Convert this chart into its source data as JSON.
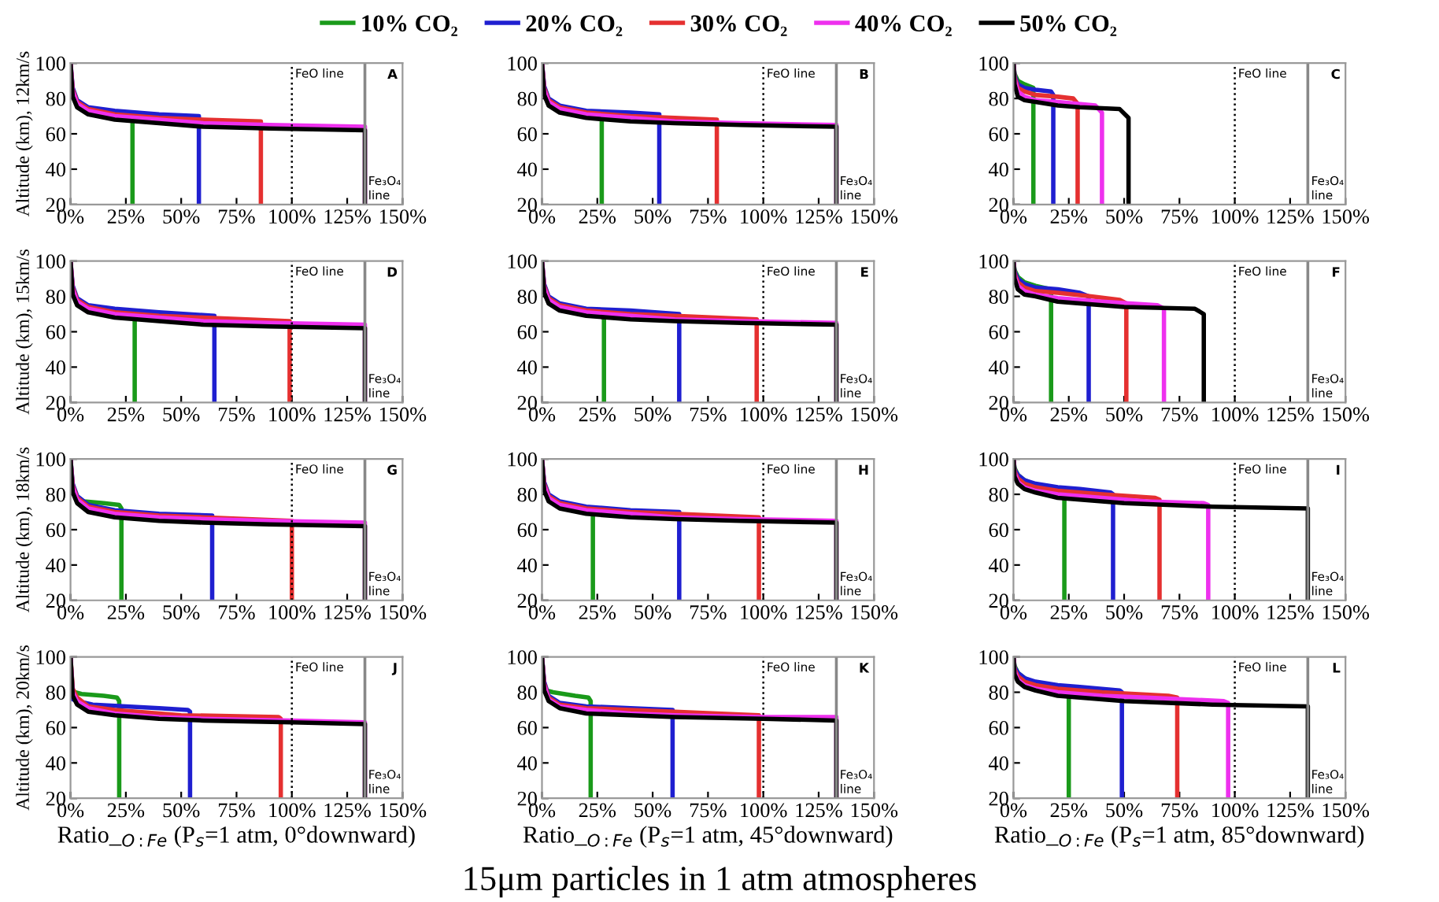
{
  "chart_data": [
    {
      "type": "line",
      "legend": "top",
      "ylabel": "Altitude (km), 12km/s",
      "xlim": [
        0,
        150
      ],
      "ylim": [
        20,
        100
      ],
      "xticks": [
        {
          "value": 0,
          "label": "0%"
        },
        {
          "value": 25,
          "label": "25%"
        },
        {
          "value": 50,
          "label": "50%"
        },
        {
          "value": 75,
          "label": "75%"
        },
        {
          "value": 100,
          "label": "100%"
        },
        {
          "value": 125,
          "label": "125%"
        },
        {
          "value": 150,
          "label": "150%"
        }
      ],
      "yticks": [
        20,
        40,
        60,
        80,
        100
      ],
      "ref_lines": [
        {
          "axis": "x",
          "value": 100,
          "label": "FeO line",
          "color": "#000000",
          "line_style": "dotted"
        },
        {
          "axis": "x",
          "value": 133,
          "label": "Fe₃O₄\nline",
          "color": "#888888",
          "line_style": "solid"
        }
      ],
      "annotations": [
        "A"
      ],
      "series": [
        {
          "name": "10% CO₂",
          "color": "#1a9a1a",
          "x": [
            28,
            28
          ],
          "values": [
            69,
            20
          ]
        },
        {
          "name": "20% CO₂",
          "color": "#1f1fd0",
          "x": [
            0,
            1,
            3,
            8,
            20,
            40,
            58,
            58
          ],
          "values": [
            100,
            86,
            79,
            75,
            73,
            71,
            70,
            20
          ]
        },
        {
          "name": "30% CO₂",
          "color": "#e53030",
          "x": [
            0,
            1,
            3,
            8,
            20,
            40,
            60,
            86,
            86
          ],
          "values": [
            100,
            85,
            78,
            74,
            71,
            69,
            68,
            67,
            20
          ]
        },
        {
          "name": "40% CO₂",
          "color": "#ee30ee",
          "x": [
            0,
            1,
            3,
            8,
            20,
            40,
            60,
            90,
            133,
            133
          ],
          "values": [
            100,
            84,
            77,
            73,
            70,
            68,
            66,
            65,
            64,
            20
          ]
        },
        {
          "name": "50% CO₂",
          "color": "#000000",
          "x": [
            0,
            1,
            3,
            8,
            20,
            40,
            60,
            90,
            133,
            133
          ],
          "values": [
            100,
            81,
            75,
            71,
            68,
            66,
            64,
            63,
            62,
            20
          ]
        }
      ]
    },
    {
      "type": "line",
      "xlim": [
        0,
        150
      ],
      "ylim": [
        20,
        100
      ],
      "xticks": [
        {
          "value": 0,
          "label": "0%"
        },
        {
          "value": 25,
          "label": "25%"
        },
        {
          "value": 50,
          "label": "50%"
        },
        {
          "value": 75,
          "label": "75%"
        },
        {
          "value": 100,
          "label": "100%"
        },
        {
          "value": 125,
          "label": "125%"
        },
        {
          "value": 150,
          "label": "150%"
        }
      ],
      "yticks": [
        20,
        40,
        60,
        80,
        100
      ],
      "ref_lines": [
        {
          "axis": "x",
          "value": 100,
          "label": "FeO line",
          "color": "#000000",
          "line_style": "dotted"
        },
        {
          "axis": "x",
          "value": 133,
          "label": "Fe₃O₄\nline",
          "color": "#888888",
          "line_style": "solid"
        }
      ],
      "annotations": [
        "B"
      ],
      "series": [
        {
          "name": "10% CO₂",
          "color": "#1a9a1a",
          "x": [
            27,
            27
          ],
          "values": [
            70,
            20
          ]
        },
        {
          "name": "20% CO₂",
          "color": "#1f1fd0",
          "x": [
            0,
            1,
            3,
            8,
            20,
            40,
            53,
            53
          ],
          "values": [
            100,
            87,
            80,
            76,
            73,
            72,
            71,
            20
          ]
        },
        {
          "name": "30% CO₂",
          "color": "#e53030",
          "x": [
            0,
            1,
            3,
            8,
            20,
            40,
            60,
            79,
            79
          ],
          "values": [
            100,
            86,
            79,
            75,
            72,
            70,
            69,
            68,
            20
          ]
        },
        {
          "name": "40% CO₂",
          "color": "#ee30ee",
          "x": [
            0,
            1,
            3,
            8,
            20,
            40,
            60,
            90,
            133,
            133
          ],
          "values": [
            100,
            85,
            78,
            74,
            71,
            69,
            67,
            66,
            65,
            20
          ]
        },
        {
          "name": "50% CO₂",
          "color": "#000000",
          "x": [
            0,
            1,
            3,
            8,
            20,
            40,
            60,
            90,
            133,
            133
          ],
          "values": [
            100,
            82,
            76,
            72,
            69,
            67,
            66,
            65,
            64,
            20
          ]
        }
      ]
    },
    {
      "type": "line",
      "xlim": [
        0,
        150
      ],
      "ylim": [
        20,
        100
      ],
      "xticks": [
        {
          "value": 0,
          "label": "0%"
        },
        {
          "value": 25,
          "label": "25%"
        },
        {
          "value": 50,
          "label": "50%"
        },
        {
          "value": 75,
          "label": "75%"
        },
        {
          "value": 100,
          "label": "100%"
        },
        {
          "value": 125,
          "label": "125%"
        },
        {
          "value": 150,
          "label": "150%"
        }
      ],
      "yticks": [
        20,
        40,
        60,
        80,
        100
      ],
      "ref_lines": [
        {
          "axis": "x",
          "value": 100,
          "label": "FeO line",
          "color": "#000000",
          "line_style": "dotted"
        },
        {
          "axis": "x",
          "value": 133,
          "label": "Fe₃O₄\nline",
          "color": "#888888",
          "line_style": "solid"
        }
      ],
      "annotations": [
        "C"
      ],
      "series": [
        {
          "name": "10% CO₂",
          "color": "#1a9a1a",
          "x": [
            0,
            0.5,
            2,
            5,
            9,
            9
          ],
          "values": [
            100,
            94,
            90,
            88,
            86,
            20
          ]
        },
        {
          "name": "20% CO₂",
          "color": "#1f1fd0",
          "x": [
            0,
            0.5,
            2,
            5,
            10,
            17,
            18,
            18
          ],
          "values": [
            100,
            93,
            88,
            86,
            85,
            84,
            82,
            20
          ]
        },
        {
          "name": "30% CO₂",
          "color": "#e53030",
          "x": [
            0,
            0.5,
            2,
            5,
            10,
            20,
            27,
            29,
            29
          ],
          "values": [
            100,
            92,
            86,
            84,
            82,
            81,
            80,
            77,
            20
          ]
        },
        {
          "name": "40% CO₂",
          "color": "#ee30ee",
          "x": [
            0,
            0.5,
            2,
            5,
            10,
            20,
            37,
            40,
            40
          ],
          "values": [
            100,
            91,
            84,
            81,
            79,
            78,
            76,
            72,
            20
          ]
        },
        {
          "name": "50% CO₂",
          "color": "#000000",
          "x": [
            0,
            0.5,
            2,
            5,
            10,
            20,
            30,
            48,
            52,
            52
          ],
          "values": [
            100,
            88,
            81,
            79,
            78,
            76,
            75,
            74,
            69,
            20
          ]
        }
      ]
    },
    {
      "type": "line",
      "ylabel": "Altitude (km), 15km/s",
      "xlim": [
        0,
        150
      ],
      "ylim": [
        20,
        100
      ],
      "xticks": [
        {
          "value": 0,
          "label": "0%"
        },
        {
          "value": 25,
          "label": "25%"
        },
        {
          "value": 50,
          "label": "50%"
        },
        {
          "value": 75,
          "label": "75%"
        },
        {
          "value": 100,
          "label": "100%"
        },
        {
          "value": 125,
          "label": "125%"
        },
        {
          "value": 150,
          "label": "150%"
        }
      ],
      "yticks": [
        20,
        40,
        60,
        80,
        100
      ],
      "ref_lines": [
        {
          "axis": "x",
          "value": 100,
          "label": "FeO line",
          "color": "#000000",
          "line_style": "dotted"
        },
        {
          "axis": "x",
          "value": 133,
          "label": "Fe₃O₄\nline",
          "color": "#888888",
          "line_style": "solid"
        }
      ],
      "annotations": [
        "D"
      ],
      "series": [
        {
          "name": "10% CO₂",
          "color": "#1a9a1a",
          "x": [
            29,
            29
          ],
          "values": [
            69,
            20
          ]
        },
        {
          "name": "20% CO₂",
          "color": "#1f1fd0",
          "x": [
            0,
            1,
            3,
            8,
            20,
            40,
            65,
            65
          ],
          "values": [
            100,
            86,
            79,
            75,
            73,
            71,
            69,
            20
          ]
        },
        {
          "name": "30% CO₂",
          "color": "#e53030",
          "x": [
            0,
            1,
            3,
            8,
            20,
            40,
            60,
            99,
            99
          ],
          "values": [
            100,
            85,
            78,
            74,
            71,
            69,
            68,
            66,
            20
          ]
        },
        {
          "name": "40% CO₂",
          "color": "#ee30ee",
          "x": [
            0,
            1,
            3,
            8,
            20,
            40,
            60,
            90,
            133,
            133
          ],
          "values": [
            100,
            84,
            77,
            73,
            70,
            68,
            66,
            65,
            64,
            20
          ]
        },
        {
          "name": "50% CO₂",
          "color": "#000000",
          "x": [
            0,
            1,
            3,
            8,
            20,
            40,
            60,
            90,
            133,
            133
          ],
          "values": [
            100,
            81,
            75,
            71,
            68,
            66,
            64,
            63,
            62,
            20
          ]
        }
      ]
    },
    {
      "type": "line",
      "xlim": [
        0,
        150
      ],
      "ylim": [
        20,
        100
      ],
      "xticks": [
        {
          "value": 0,
          "label": "0%"
        },
        {
          "value": 25,
          "label": "25%"
        },
        {
          "value": 50,
          "label": "50%"
        },
        {
          "value": 75,
          "label": "75%"
        },
        {
          "value": 100,
          "label": "100%"
        },
        {
          "value": 125,
          "label": "125%"
        },
        {
          "value": 150,
          "label": "150%"
        }
      ],
      "yticks": [
        20,
        40,
        60,
        80,
        100
      ],
      "ref_lines": [
        {
          "axis": "x",
          "value": 100,
          "label": "FeO line",
          "color": "#000000",
          "line_style": "dotted"
        },
        {
          "axis": "x",
          "value": 133,
          "label": "Fe₃O₄\nline",
          "color": "#888888",
          "line_style": "solid"
        }
      ],
      "annotations": [
        "E"
      ],
      "series": [
        {
          "name": "10% CO₂",
          "color": "#1a9a1a",
          "x": [
            28,
            28
          ],
          "values": [
            70,
            20
          ]
        },
        {
          "name": "20% CO₂",
          "color": "#1f1fd0",
          "x": [
            0,
            1,
            3,
            8,
            20,
            40,
            62,
            62
          ],
          "values": [
            100,
            87,
            80,
            76,
            73,
            72,
            70,
            20
          ]
        },
        {
          "name": "30% CO₂",
          "color": "#e53030",
          "x": [
            0,
            1,
            3,
            8,
            20,
            40,
            60,
            97,
            97
          ],
          "values": [
            100,
            86,
            79,
            75,
            72,
            70,
            69,
            67,
            20
          ]
        },
        {
          "name": "40% CO₂",
          "color": "#ee30ee",
          "x": [
            0,
            1,
            3,
            8,
            20,
            40,
            60,
            90,
            133,
            133
          ],
          "values": [
            100,
            85,
            78,
            74,
            71,
            69,
            67,
            66,
            65,
            20
          ]
        },
        {
          "name": "50% CO₂",
          "color": "#000000",
          "x": [
            0,
            1,
            3,
            8,
            20,
            40,
            60,
            90,
            133,
            133
          ],
          "values": [
            100,
            82,
            76,
            72,
            69,
            67,
            66,
            65,
            64,
            20
          ]
        }
      ]
    },
    {
      "type": "line",
      "xlim": [
        0,
        150
      ],
      "ylim": [
        20,
        100
      ],
      "xticks": [
        {
          "value": 0,
          "label": "0%"
        },
        {
          "value": 25,
          "label": "25%"
        },
        {
          "value": 50,
          "label": "50%"
        },
        {
          "value": 75,
          "label": "75%"
        },
        {
          "value": 100,
          "label": "100%"
        },
        {
          "value": 125,
          "label": "125%"
        },
        {
          "value": 150,
          "label": "150%"
        }
      ],
      "yticks": [
        20,
        40,
        60,
        80,
        100
      ],
      "ref_lines": [
        {
          "axis": "x",
          "value": 100,
          "label": "FeO line",
          "color": "#000000",
          "line_style": "dotted"
        },
        {
          "axis": "x",
          "value": 133,
          "label": "Fe₃O₄\nline",
          "color": "#888888",
          "line_style": "solid"
        }
      ],
      "annotations": [
        "F"
      ],
      "series": [
        {
          "name": "10% CO₂",
          "color": "#1a9a1a",
          "x": [
            0,
            0.5,
            2,
            5,
            10,
            17,
            17
          ],
          "values": [
            100,
            95,
            91,
            88,
            86,
            84,
            20
          ]
        },
        {
          "name": "20% CO₂",
          "color": "#1f1fd0",
          "x": [
            0,
            0.5,
            2,
            5,
            10,
            20,
            30,
            34,
            34
          ],
          "values": [
            100,
            94,
            90,
            87,
            85,
            84,
            82,
            80,
            20
          ]
        },
        {
          "name": "30% CO₂",
          "color": "#e53030",
          "x": [
            0,
            0.5,
            2,
            5,
            10,
            20,
            35,
            48,
            51,
            51
          ],
          "values": [
            100,
            93,
            88,
            85,
            83,
            82,
            80,
            78,
            76,
            20
          ]
        },
        {
          "name": "40% CO₂",
          "color": "#ee30ee",
          "x": [
            0,
            0.5,
            2,
            5,
            10,
            20,
            40,
            65,
            68,
            68
          ],
          "values": [
            100,
            92,
            86,
            83,
            81,
            79,
            77,
            75,
            73,
            20
          ]
        },
        {
          "name": "50% CO₂",
          "color": "#000000",
          "x": [
            0,
            0.5,
            2,
            5,
            10,
            20,
            30,
            50,
            82,
            86,
            86
          ],
          "values": [
            100,
            90,
            84,
            81,
            80,
            77,
            76,
            74,
            73,
            70,
            20
          ]
        }
      ]
    },
    {
      "type": "line",
      "ylabel": "Altitude (km), 18km/s",
      "xlim": [
        0,
        150
      ],
      "ylim": [
        20,
        100
      ],
      "xticks": [
        {
          "value": 0,
          "label": "0%"
        },
        {
          "value": 25,
          "label": "25%"
        },
        {
          "value": 50,
          "label": "50%"
        },
        {
          "value": 75,
          "label": "75%"
        },
        {
          "value": 100,
          "label": "100%"
        },
        {
          "value": 125,
          "label": "125%"
        },
        {
          "value": 150,
          "label": "150%"
        }
      ],
      "yticks": [
        20,
        40,
        60,
        80,
        100
      ],
      "ref_lines": [
        {
          "axis": "x",
          "value": 100,
          "label": "FeO line",
          "color": "#000000",
          "line_style": "dotted"
        },
        {
          "axis": "x",
          "value": 133,
          "label": "Fe₃O₄\nline",
          "color": "#888888",
          "line_style": "solid"
        }
      ],
      "annotations": [
        "G"
      ],
      "series": [
        {
          "name": "10% CO₂",
          "color": "#1a9a1a",
          "x": [
            0,
            1,
            3,
            6,
            15,
            22,
            23,
            23
          ],
          "values": [
            100,
            83,
            78,
            76,
            75,
            74,
            72,
            20
          ]
        },
        {
          "name": "20% CO₂",
          "color": "#1f1fd0",
          "x": [
            0,
            1,
            3,
            8,
            20,
            40,
            64,
            64
          ],
          "values": [
            100,
            86,
            79,
            74,
            71,
            69,
            68,
            20
          ]
        },
        {
          "name": "30% CO₂",
          "color": "#e53030",
          "x": [
            0,
            1,
            3,
            8,
            20,
            40,
            60,
            100,
            100
          ],
          "values": [
            100,
            85,
            78,
            73,
            70,
            68,
            67,
            65,
            20
          ]
        },
        {
          "name": "40% CO₂",
          "color": "#ee30ee",
          "x": [
            0,
            1,
            3,
            8,
            20,
            40,
            60,
            90,
            133,
            133
          ],
          "values": [
            100,
            84,
            77,
            72,
            69,
            67,
            66,
            65,
            64,
            20
          ]
        },
        {
          "name": "50% CO₂",
          "color": "#000000",
          "x": [
            0,
            1,
            3,
            8,
            20,
            40,
            60,
            90,
            133,
            133
          ],
          "values": [
            100,
            81,
            75,
            70,
            67,
            65,
            64,
            63,
            62,
            20
          ]
        }
      ]
    },
    {
      "type": "line",
      "xlim": [
        0,
        150
      ],
      "ylim": [
        20,
        100
      ],
      "xticks": [
        {
          "value": 0,
          "label": "0%"
        },
        {
          "value": 25,
          "label": "25%"
        },
        {
          "value": 50,
          "label": "50%"
        },
        {
          "value": 75,
          "label": "75%"
        },
        {
          "value": 100,
          "label": "100%"
        },
        {
          "value": 125,
          "label": "125%"
        },
        {
          "value": 150,
          "label": "150%"
        }
      ],
      "yticks": [
        20,
        40,
        60,
        80,
        100
      ],
      "ref_lines": [
        {
          "axis": "x",
          "value": 100,
          "label": "FeO line",
          "color": "#000000",
          "line_style": "dotted"
        },
        {
          "axis": "x",
          "value": 133,
          "label": "Fe₃O₄\nline",
          "color": "#888888",
          "line_style": "solid"
        }
      ],
      "annotations": [
        "H"
      ],
      "series": [
        {
          "name": "10% CO₂",
          "color": "#1a9a1a",
          "x": [
            23,
            23
          ],
          "values": [
            71,
            20
          ]
        },
        {
          "name": "20% CO₂",
          "color": "#1f1fd0",
          "x": [
            0,
            1,
            3,
            8,
            20,
            40,
            62,
            62
          ],
          "values": [
            100,
            87,
            80,
            76,
            73,
            71,
            70,
            20
          ]
        },
        {
          "name": "30% CO₂",
          "color": "#e53030",
          "x": [
            0,
            1,
            3,
            8,
            20,
            40,
            60,
            98,
            98
          ],
          "values": [
            100,
            86,
            79,
            75,
            72,
            70,
            69,
            67,
            20
          ]
        },
        {
          "name": "40% CO₂",
          "color": "#ee30ee",
          "x": [
            0,
            1,
            3,
            8,
            20,
            40,
            60,
            90,
            133,
            133
          ],
          "values": [
            100,
            85,
            78,
            74,
            71,
            69,
            67,
            66,
            65,
            20
          ]
        },
        {
          "name": "50% CO₂",
          "color": "#000000",
          "x": [
            0,
            1,
            3,
            8,
            20,
            40,
            60,
            90,
            133,
            133
          ],
          "values": [
            100,
            82,
            76,
            72,
            69,
            67,
            66,
            65,
            64,
            20
          ]
        }
      ]
    },
    {
      "type": "line",
      "xlim": [
        0,
        150
      ],
      "ylim": [
        20,
        100
      ],
      "xticks": [
        {
          "value": 0,
          "label": "0%"
        },
        {
          "value": 25,
          "label": "25%"
        },
        {
          "value": 50,
          "label": "50%"
        },
        {
          "value": 75,
          "label": "75%"
        },
        {
          "value": 100,
          "label": "100%"
        },
        {
          "value": 125,
          "label": "125%"
        },
        {
          "value": 150,
          "label": "150%"
        }
      ],
      "yticks": [
        20,
        40,
        60,
        80,
        100
      ],
      "ref_lines": [
        {
          "axis": "x",
          "value": 100,
          "label": "FeO line",
          "color": "#000000",
          "line_style": "dotted"
        },
        {
          "axis": "x",
          "value": 133,
          "label": "Fe₃O₄\nline",
          "color": "#888888",
          "line_style": "solid"
        }
      ],
      "annotations": [
        "I"
      ],
      "series": [
        {
          "name": "10% CO₂",
          "color": "#1a9a1a",
          "x": [
            0,
            0.5,
            2,
            5,
            10,
            23,
            23
          ],
          "values": [
            100,
            95,
            91,
            88,
            85,
            79,
            20
          ]
        },
        {
          "name": "20% CO₂",
          "color": "#1f1fd0",
          "x": [
            0,
            0.5,
            2,
            5,
            10,
            20,
            30,
            44,
            45,
            45
          ],
          "values": [
            100,
            94,
            91,
            88,
            86,
            84,
            83,
            81,
            80,
            20
          ]
        },
        {
          "name": "30% CO₂",
          "color": "#e53030",
          "x": [
            0,
            0.5,
            2,
            5,
            10,
            20,
            40,
            64,
            66,
            66
          ],
          "values": [
            100,
            93,
            89,
            86,
            84,
            82,
            80,
            78,
            77,
            20
          ]
        },
        {
          "name": "40% CO₂",
          "color": "#ee30ee",
          "x": [
            0,
            0.5,
            2,
            5,
            10,
            20,
            40,
            60,
            86,
            88,
            88
          ],
          "values": [
            100,
            92,
            87,
            84,
            82,
            80,
            78,
            76,
            75,
            74,
            20
          ]
        },
        {
          "name": "50% CO₂",
          "color": "#000000",
          "x": [
            0,
            0.5,
            2,
            5,
            10,
            20,
            30,
            50,
            90,
            133,
            133
          ],
          "values": [
            100,
            90,
            86,
            83,
            81,
            78,
            77,
            75,
            73,
            72,
            20
          ]
        }
      ]
    },
    {
      "type": "line",
      "ylabel": "Altitude (km), 20km/s",
      "xlabel": "Ratio_$_{O:Fe}$ (P$_{s}$=1 atm, 0°downward)",
      "xlim": [
        0,
        150
      ],
      "ylim": [
        20,
        100
      ],
      "xticks": [
        {
          "value": 0,
          "label": "0%"
        },
        {
          "value": 25,
          "label": "25%"
        },
        {
          "value": 50,
          "label": "50%"
        },
        {
          "value": 75,
          "label": "75%"
        },
        {
          "value": 100,
          "label": "100%"
        },
        {
          "value": 125,
          "label": "125%"
        },
        {
          "value": 150,
          "label": "150%"
        }
      ],
      "yticks": [
        20,
        40,
        60,
        80,
        100
      ],
      "ref_lines": [
        {
          "axis": "x",
          "value": 100,
          "label": "FeO line",
          "color": "#000000",
          "line_style": "dotted"
        },
        {
          "axis": "x",
          "value": 133,
          "label": "Fe₃O₄\nline",
          "color": "#888888",
          "line_style": "solid"
        }
      ],
      "annotations": [
        "J"
      ],
      "series": [
        {
          "name": "10% CO₂",
          "color": "#1a9a1a",
          "x": [
            0,
            1,
            2,
            5,
            15,
            21,
            22,
            22
          ],
          "values": [
            100,
            81,
            80,
            79,
            78,
            77,
            75,
            20
          ]
        },
        {
          "name": "20% CO₂",
          "color": "#1f1fd0",
          "x": [
            0,
            0.5,
            1,
            3,
            10,
            40,
            53,
            54,
            54
          ],
          "values": [
            100,
            77,
            76,
            75,
            73,
            71,
            70,
            69,
            20
          ]
        },
        {
          "name": "30% CO₂",
          "color": "#e53030",
          "x": [
            0,
            1,
            3,
            8,
            20,
            50,
            94,
            95,
            95
          ],
          "values": [
            100,
            82,
            77,
            72,
            70,
            67,
            66,
            65,
            20
          ]
        },
        {
          "name": "40% CO₂",
          "color": "#ee30ee",
          "x": [
            0,
            1,
            3,
            8,
            20,
            40,
            60,
            100,
            133,
            133
          ],
          "values": [
            100,
            80,
            75,
            71,
            68,
            66,
            65,
            64,
            63,
            20
          ]
        },
        {
          "name": "50% CO₂",
          "color": "#000000",
          "x": [
            0,
            1,
            3,
            8,
            20,
            40,
            60,
            100,
            133,
            133
          ],
          "values": [
            100,
            78,
            73,
            69,
            67,
            65,
            64,
            63,
            62,
            20
          ]
        }
      ]
    },
    {
      "type": "line",
      "xlabel": "Ratio_$_{O:Fe}$ (P$_{s}$=1 atm, 45°downward)",
      "xlim": [
        0,
        150
      ],
      "ylim": [
        20,
        100
      ],
      "xticks": [
        {
          "value": 0,
          "label": "0%"
        },
        {
          "value": 25,
          "label": "25%"
        },
        {
          "value": 50,
          "label": "50%"
        },
        {
          "value": 75,
          "label": "75%"
        },
        {
          "value": 100,
          "label": "100%"
        },
        {
          "value": 125,
          "label": "125%"
        },
        {
          "value": 150,
          "label": "150%"
        }
      ],
      "yticks": [
        20,
        40,
        60,
        80,
        100
      ],
      "ref_lines": [
        {
          "axis": "x",
          "value": 100,
          "label": "FeO line",
          "color": "#000000",
          "line_style": "dotted"
        },
        {
          "axis": "x",
          "value": 133,
          "label": "Fe₃O₄\nline",
          "color": "#888888",
          "line_style": "solid"
        }
      ],
      "annotations": [
        "K",
        "15μm particles in 1 atm atmospheres"
      ],
      "series": [
        {
          "name": "10% CO₂",
          "color": "#1a9a1a",
          "x": [
            0,
            1,
            2,
            5,
            15,
            21,
            22,
            22
          ],
          "values": [
            100,
            83,
            81,
            80,
            78,
            77,
            75,
            20
          ]
        },
        {
          "name": "20% CO₂",
          "color": "#1f1fd0",
          "x": [
            0,
            1,
            3,
            8,
            20,
            40,
            59,
            59
          ],
          "values": [
            100,
            86,
            78,
            74,
            72,
            71,
            70,
            20
          ]
        },
        {
          "name": "30% CO₂",
          "color": "#e53030",
          "x": [
            0,
            1,
            3,
            8,
            20,
            40,
            60,
            98,
            98
          ],
          "values": [
            100,
            85,
            77,
            73,
            71,
            70,
            69,
            67,
            20
          ]
        },
        {
          "name": "40% CO₂",
          "color": "#ee30ee",
          "x": [
            0,
            1,
            3,
            8,
            20,
            40,
            60,
            100,
            133,
            133
          ],
          "values": [
            100,
            84,
            76,
            72,
            70,
            68,
            67,
            66,
            66,
            20
          ]
        },
        {
          "name": "50% CO₂",
          "color": "#000000",
          "x": [
            0,
            1,
            3,
            8,
            20,
            40,
            60,
            100,
            133,
            133
          ],
          "values": [
            100,
            81,
            75,
            71,
            68,
            67,
            66,
            65,
            64,
            20
          ]
        }
      ]
    },
    {
      "type": "line",
      "xlabel": "Ratio_$_{O:Fe}$ (P$_{s}$=1 atm, 85°downward)",
      "xlim": [
        0,
        150
      ],
      "ylim": [
        20,
        100
      ],
      "xticks": [
        {
          "value": 0,
          "label": "0%"
        },
        {
          "value": 25,
          "label": "25%"
        },
        {
          "value": 50,
          "label": "50%"
        },
        {
          "value": 75,
          "label": "75%"
        },
        {
          "value": 100,
          "label": "100%"
        },
        {
          "value": 125,
          "label": "125%"
        },
        {
          "value": 150,
          "label": "150%"
        }
      ],
      "yticks": [
        20,
        40,
        60,
        80,
        100
      ],
      "ref_lines": [
        {
          "axis": "x",
          "value": 100,
          "label": "FeO line",
          "color": "#000000",
          "line_style": "dotted"
        },
        {
          "axis": "x",
          "value": 133,
          "label": "Fe₃O₄\nline",
          "color": "#888888",
          "line_style": "solid"
        }
      ],
      "annotations": [
        "L"
      ],
      "series": [
        {
          "name": "10% CO₂",
          "color": "#1a9a1a",
          "x": [
            0,
            0.5,
            2,
            5,
            10,
            25,
            25
          ],
          "values": [
            100,
            95,
            91,
            88,
            85,
            79,
            20
          ]
        },
        {
          "name": "20% CO₂",
          "color": "#1f1fd0",
          "x": [
            0,
            0.5,
            2,
            5,
            10,
            20,
            30,
            48,
            49,
            49
          ],
          "values": [
            100,
            94,
            91,
            88,
            86,
            84,
            83,
            81,
            80,
            20
          ]
        },
        {
          "name": "30% CO₂",
          "color": "#e53030",
          "x": [
            0,
            0.5,
            2,
            5,
            10,
            20,
            40,
            70,
            74,
            74
          ],
          "values": [
            100,
            93,
            89,
            86,
            84,
            82,
            80,
            78,
            77,
            20
          ]
        },
        {
          "name": "40% CO₂",
          "color": "#ee30ee",
          "x": [
            0,
            0.5,
            2,
            5,
            10,
            20,
            40,
            60,
            95,
            97,
            97
          ],
          "values": [
            100,
            92,
            87,
            84,
            82,
            80,
            78,
            77,
            75,
            74,
            20
          ]
        },
        {
          "name": "50% CO₂",
          "color": "#000000",
          "x": [
            0,
            0.5,
            2,
            5,
            10,
            20,
            30,
            50,
            90,
            133,
            133
          ],
          "values": [
            100,
            90,
            86,
            83,
            81,
            78,
            77,
            75,
            73,
            72,
            20
          ]
        }
      ]
    }
  ]
}
